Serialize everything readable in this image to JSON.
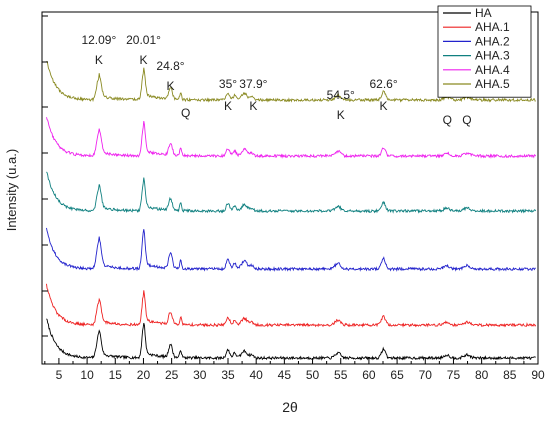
{
  "chart_data": {
    "type": "line",
    "title": "",
    "xlabel": "2θ",
    "ylabel": "Intensity (u.a.)",
    "xlim": [
      2,
      90
    ],
    "xticks": [
      5,
      10,
      15,
      20,
      25,
      30,
      35,
      40,
      45,
      50,
      55,
      60,
      65,
      70,
      75,
      80,
      85,
      90
    ],
    "y_tick_labels": "none",
    "grid": false,
    "legend_position": "top-right",
    "series": [
      {
        "name": "HA",
        "color": "#000000"
      },
      {
        "name": "AHA.1",
        "color": "#ee2222"
      },
      {
        "name": "AHA.2",
        "color": "#2222cc"
      },
      {
        "name": "AHA.3",
        "color": "#108080"
      },
      {
        "name": "AHA.4",
        "color": "#ee22ee"
      },
      {
        "name": "AHA.5",
        "color": "#8a8a22"
      }
    ],
    "peaks": [
      {
        "x": 12.09,
        "height": 24,
        "width": 0.55,
        "tail": 2.6
      },
      {
        "x": 20.01,
        "height": 31,
        "width": 0.4,
        "tail": 2.6
      },
      {
        "x": 24.8,
        "height": 13,
        "width": 0.45,
        "tail": 0
      },
      {
        "x": 26.6,
        "height": 8,
        "width": 0.22,
        "tail": 0
      },
      {
        "x": 35.0,
        "height": 8,
        "width": 0.45,
        "tail": 0
      },
      {
        "x": 36.2,
        "height": 5,
        "width": 0.4,
        "tail": 0
      },
      {
        "x": 37.9,
        "height": 7,
        "width": 0.7,
        "tail": 0
      },
      {
        "x": 39.2,
        "height": 3,
        "width": 0.5,
        "tail": 0
      },
      {
        "x": 54.5,
        "height": 5,
        "width": 0.7,
        "tail": 0
      },
      {
        "x": 62.6,
        "height": 9,
        "width": 0.5,
        "tail": 0
      },
      {
        "x": 73.8,
        "height": 3,
        "width": 0.7,
        "tail": 0
      },
      {
        "x": 77.4,
        "height": 3,
        "width": 0.8,
        "tail": 0
      }
    ],
    "annotations": [
      {
        "angle": "12.09°",
        "phase": "K",
        "x": 12.09,
        "level": 0
      },
      {
        "angle": "20.01°",
        "phase": "K",
        "x": 20.01,
        "level": 0
      },
      {
        "angle": "24.8°",
        "phase": "K",
        "x": 24.8,
        "level": 1
      },
      {
        "angle": "",
        "phase": "Q",
        "x": 27.5,
        "level": 2
      },
      {
        "angle": "35°",
        "phase": "K",
        "x": 35.0,
        "level": 3
      },
      {
        "angle": "37.9°",
        "phase": "K",
        "x": 39.5,
        "level": 3
      },
      {
        "angle": "54.5°",
        "phase": "K",
        "x": 55.0,
        "level": 4
      },
      {
        "angle": "62.6°",
        "phase": "K",
        "x": 62.6,
        "level": 3
      },
      {
        "angle": "",
        "phase": "Q",
        "x": 73.9,
        "level": 5
      },
      {
        "angle": "",
        "phase": "Q",
        "x": 77.4,
        "level": 5
      }
    ]
  }
}
